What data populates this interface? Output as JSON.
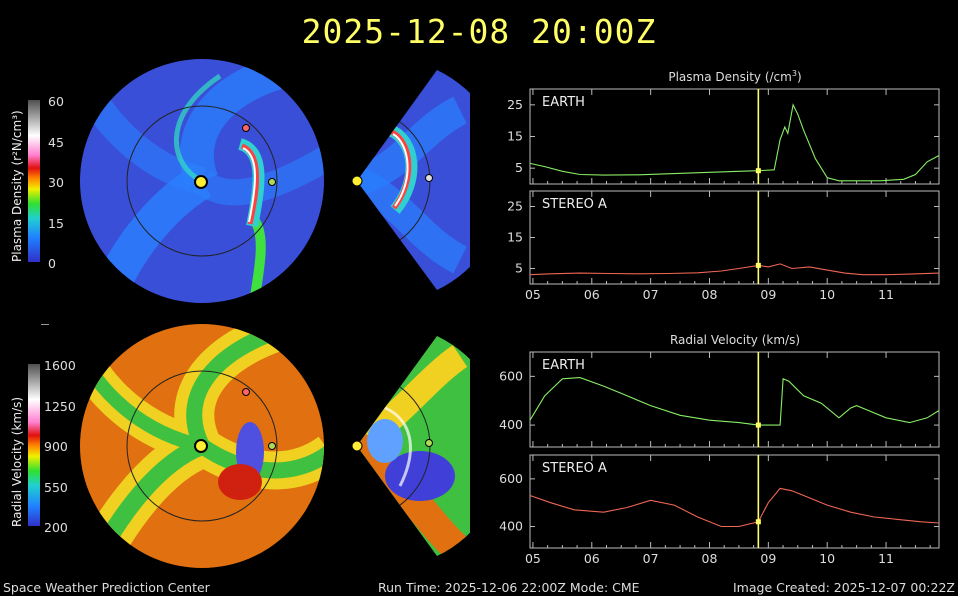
{
  "header": {
    "title": "2025-12-08  20:00Z"
  },
  "footer": {
    "left": "Space Weather Prediction Center",
    "center": "Run Time: 2025-12-06 22:00Z  Mode: CME",
    "right": "Image Created: 2025-12-07 00:22Z"
  },
  "colorbars": {
    "density": {
      "label": "Plasma Density (r²N/cm³)",
      "ticks": [
        "60",
        "45",
        "30",
        "15",
        "0"
      ]
    },
    "velocity": {
      "label": "Radial Velocity (km/s)",
      "ticks": [
        "1600",
        "1250",
        "900",
        "550",
        "200"
      ]
    }
  },
  "colors": {
    "earth_line": "#88ee66",
    "stereo_line": "#ee6655",
    "time_marker": "#ffff66"
  },
  "chart_data": [
    {
      "type": "line",
      "title": "Plasma Density (/cm³)",
      "panel": "EARTH",
      "x_tick_labels": [
        "05",
        "06",
        "07",
        "08",
        "09",
        "10",
        "11"
      ],
      "xlim": [
        4.95,
        11.9
      ],
      "ylim": [
        0,
        30
      ],
      "y_ticks": [
        5,
        15,
        25
      ],
      "current_time": 8.83,
      "series": [
        {
          "name": "EARTH",
          "color": "#88ee66",
          "x": [
            4.95,
            5.2,
            5.5,
            5.8,
            6.2,
            6.8,
            7.4,
            8.0,
            8.5,
            8.83,
            9.1,
            9.2,
            9.28,
            9.33,
            9.42,
            9.5,
            9.6,
            9.8,
            10.0,
            10.2,
            10.5,
            10.9,
            11.3,
            11.5,
            11.7,
            11.9
          ],
          "y": [
            6.5,
            5.5,
            4,
            3,
            2.8,
            2.9,
            3.3,
            3.7,
            4,
            4.2,
            4.5,
            14,
            18,
            16,
            25,
            22,
            17,
            8,
            2,
            1,
            1,
            1,
            1.5,
            3,
            7,
            9
          ]
        }
      ]
    },
    {
      "type": "line",
      "panel": "STEREO A",
      "x_tick_labels": [
        "05",
        "06",
        "07",
        "08",
        "09",
        "10",
        "11"
      ],
      "xlim": [
        4.95,
        11.9
      ],
      "ylim": [
        0,
        30
      ],
      "y_ticks": [
        5,
        15,
        25
      ],
      "current_time": 8.83,
      "series": [
        {
          "name": "STEREO A",
          "color": "#ee6655",
          "x": [
            4.95,
            5.3,
            5.8,
            6.3,
            6.8,
            7.3,
            7.8,
            8.2,
            8.5,
            8.83,
            9.0,
            9.2,
            9.4,
            9.7,
            10.0,
            10.3,
            10.6,
            11.0,
            11.4,
            11.9
          ],
          "y": [
            3,
            3.3,
            3.5,
            3.4,
            3.3,
            3.4,
            3.6,
            4.2,
            5,
            6,
            5.5,
            6.5,
            5,
            5.5,
            4.5,
            3.5,
            3,
            3,
            3.2,
            3.5
          ]
        }
      ]
    },
    {
      "type": "line",
      "title": "Radial Velocity (km/s)",
      "panel": "EARTH",
      "x_tick_labels": [
        "05",
        "06",
        "07",
        "08",
        "09",
        "10",
        "11"
      ],
      "xlim": [
        4.95,
        11.9
      ],
      "ylim": [
        310,
        700
      ],
      "y_ticks": [
        400,
        600
      ],
      "current_time": 8.83,
      "series": [
        {
          "name": "EARTH",
          "color": "#88ee66",
          "x": [
            4.95,
            5.2,
            5.5,
            5.8,
            6.2,
            6.6,
            7.0,
            7.5,
            8.0,
            8.5,
            8.83,
            9.2,
            9.25,
            9.35,
            9.6,
            9.9,
            10.2,
            10.4,
            10.5,
            10.7,
            11.0,
            11.4,
            11.7,
            11.9
          ],
          "y": [
            420,
            520,
            590,
            595,
            560,
            520,
            480,
            440,
            420,
            410,
            400,
            400,
            590,
            580,
            520,
            490,
            430,
            470,
            480,
            460,
            430,
            410,
            430,
            460
          ]
        }
      ]
    },
    {
      "type": "line",
      "panel": "STEREO A",
      "x_tick_labels": [
        "05",
        "06",
        "07",
        "08",
        "09",
        "10",
        "11"
      ],
      "xlim": [
        4.95,
        11.9
      ],
      "ylim": [
        310,
        700
      ],
      "y_ticks": [
        400,
        600
      ],
      "current_time": 8.83,
      "series": [
        {
          "name": "STEREO A",
          "color": "#ee6655",
          "x": [
            4.95,
            5.3,
            5.7,
            6.2,
            6.6,
            7.0,
            7.4,
            7.8,
            8.2,
            8.5,
            8.83,
            9.0,
            9.2,
            9.4,
            9.7,
            10.0,
            10.4,
            10.8,
            11.2,
            11.6,
            11.9
          ],
          "y": [
            530,
            500,
            470,
            460,
            480,
            510,
            490,
            440,
            400,
            400,
            420,
            500,
            560,
            550,
            520,
            490,
            460,
            440,
            430,
            420,
            415
          ]
        }
      ]
    }
  ]
}
